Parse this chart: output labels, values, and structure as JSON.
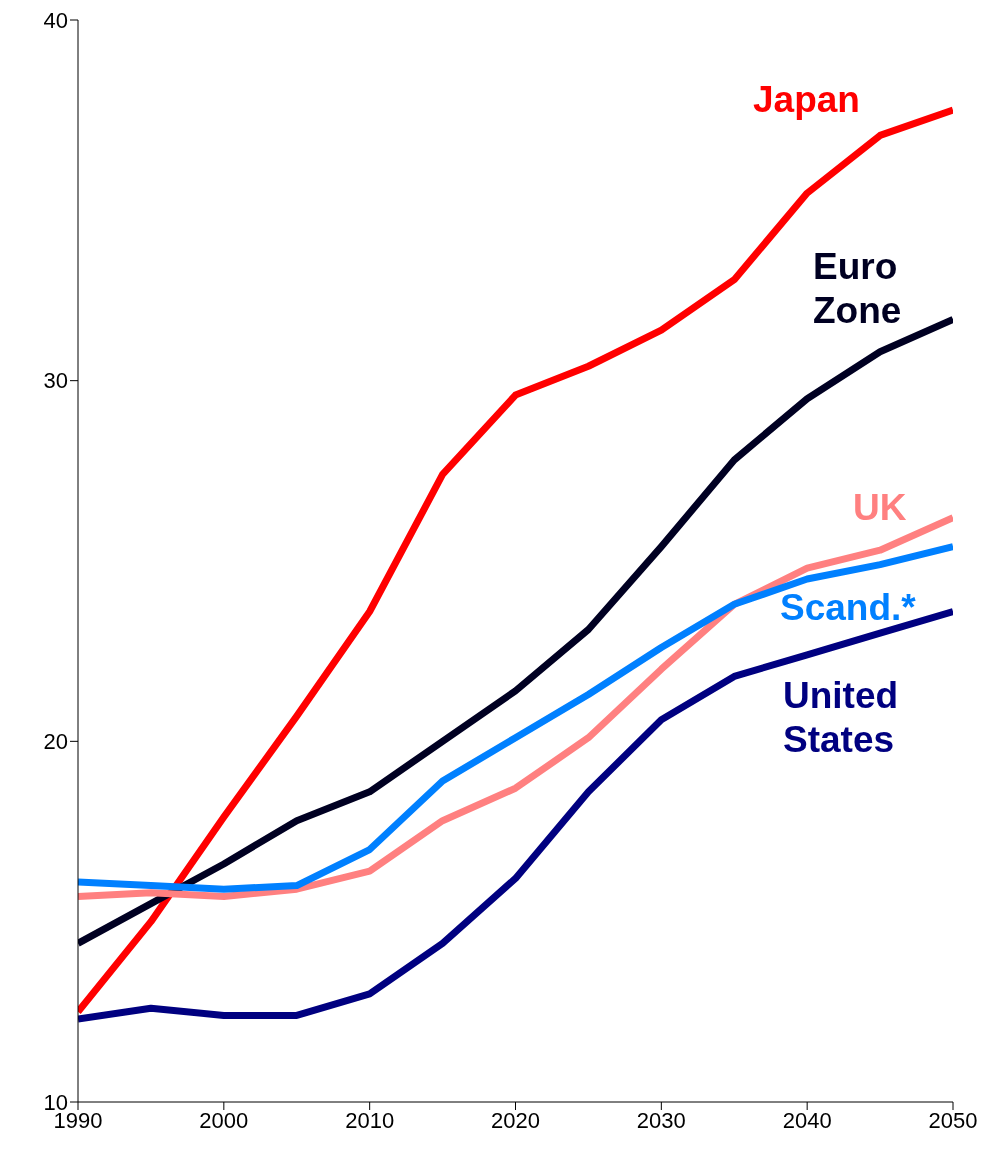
{
  "chart_data": {
    "type": "line",
    "x": [
      1990,
      1995,
      2000,
      2005,
      2010,
      2015,
      2020,
      2025,
      2030,
      2035,
      2040,
      2045,
      2050
    ],
    "series": [
      {
        "name": "Japan",
        "color": "#ff0000",
        "values": [
          12.5,
          15.0,
          17.9,
          20.7,
          23.6,
          27.4,
          29.6,
          30.4,
          31.4,
          32.8,
          35.2,
          36.8,
          37.5
        ]
      },
      {
        "name": "Euro Zone",
        "color": "#000022",
        "values": [
          14.4,
          15.5,
          16.6,
          17.8,
          18.6,
          20.0,
          21.4,
          23.1,
          25.4,
          27.8,
          29.5,
          30.8,
          31.7
        ]
      },
      {
        "name": "UK",
        "color": "#ff8080",
        "values": [
          15.7,
          15.8,
          15.7,
          15.9,
          16.4,
          17.8,
          18.7,
          20.1,
          22.0,
          23.8,
          24.8,
          25.3,
          26.2
        ]
      },
      {
        "name": "Scand.*",
        "color": "#0080ff",
        "values": [
          16.1,
          16.0,
          15.9,
          16.0,
          17.0,
          18.9,
          20.1,
          21.3,
          22.6,
          23.8,
          24.5,
          24.9,
          25.4
        ]
      },
      {
        "name": "United States",
        "color": "#000080",
        "values": [
          12.3,
          12.6,
          12.4,
          12.4,
          13.0,
          14.4,
          16.2,
          18.6,
          20.6,
          21.8,
          22.4,
          23.0,
          23.6
        ]
      }
    ],
    "xlim": [
      1990,
      2050
    ],
    "xticks": [
      1990,
      2000,
      2010,
      2020,
      2030,
      2040,
      2050
    ],
    "ylim": [
      10,
      40
    ],
    "yticks": [
      10,
      20,
      30,
      40
    ],
    "grid": false,
    "legend": false,
    "marker": "none",
    "line_style": "solid"
  }
}
